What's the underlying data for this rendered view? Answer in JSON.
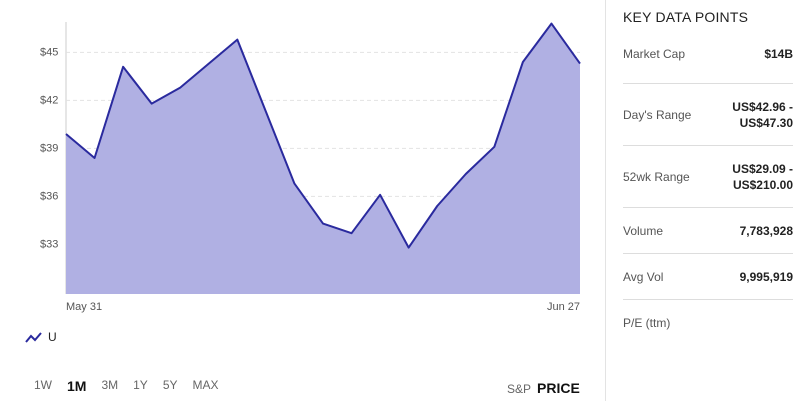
{
  "chart_data": {
    "type": "area",
    "categories": [
      "May 31",
      null,
      null,
      null,
      null,
      null,
      null,
      null,
      null,
      null,
      null,
      null,
      null,
      null,
      null,
      null,
      null,
      null,
      "Jun 27"
    ],
    "series": [
      {
        "name": "U",
        "color": "#2a2a9e",
        "values": [
          39.9,
          38.4,
          44.1,
          41.8,
          42.8,
          44.3,
          45.8,
          41.3,
          36.8,
          34.3,
          33.7,
          36.1,
          32.8,
          35.4,
          37.4,
          39.1,
          44.4,
          46.8,
          44.3
        ]
      }
    ],
    "fill_color": "#b0b0e3",
    "ylim": [
      29.9,
      46.9
    ],
    "yticks": [
      {
        "value": 33,
        "label": "$33"
      },
      {
        "value": 36,
        "label": "$36"
      },
      {
        "value": 39,
        "label": "$39"
      },
      {
        "value": 42,
        "label": "$42"
      },
      {
        "value": 45,
        "label": "$45"
      }
    ],
    "grid": true
  },
  "ranges": [
    "1W",
    "1M",
    "3M",
    "1Y",
    "5Y",
    "MAX"
  ],
  "selected_range": "1M",
  "benchmark": "S&P",
  "mode": "PRICE",
  "key_data": {
    "title": "KEY DATA POINTS",
    "rows": [
      [
        "Market Cap",
        "$14B"
      ],
      [
        "Day's Range",
        "US$42.96 - US$47.30"
      ],
      [
        "52wk Range",
        "US$29.09 - US$210.00"
      ],
      [
        "Volume",
        "7,783,928"
      ],
      [
        "Avg Vol",
        "9,995,919"
      ],
      [
        "P/E (ttm)"
      ]
    ]
  }
}
